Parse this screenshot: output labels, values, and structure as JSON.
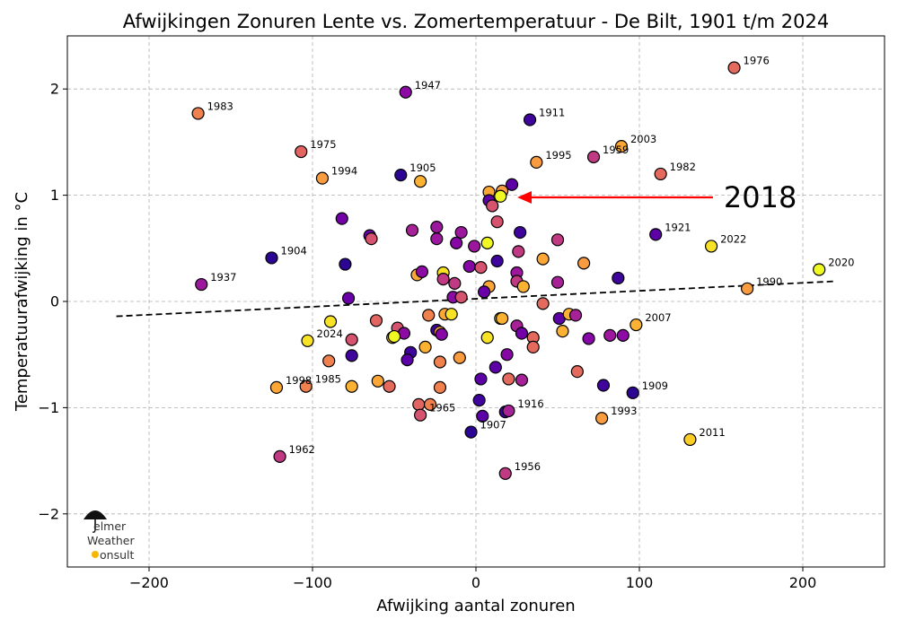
{
  "chart_data": {
    "type": "scatter",
    "title": "Afwijkingen Zonuren Lente vs. Zomertemperatuur - De Bilt, 1901 t/m 2024",
    "xlabel": "Afwijking aantal zonuren",
    "ylabel": "Temperatuurafwijking in °C",
    "xlim": [
      -250,
      250
    ],
    "ylim": [
      -2.5,
      2.5
    ],
    "xticks": [
      -200,
      -100,
      0,
      100,
      200
    ],
    "yticks": [
      -2,
      -1,
      0,
      1,
      2
    ],
    "xtick_labels": [
      "−200",
      "−100",
      "0",
      "100",
      "200"
    ],
    "ytick_labels": [
      "−2",
      "−1",
      "0",
      "1",
      "2"
    ],
    "grid": true,
    "colormap": "plasma (by year)",
    "trendline": {
      "x": [
        -220,
        220
      ],
      "y": [
        -0.14,
        0.19
      ],
      "color": "#000000",
      "style": "dashed"
    },
    "highlight": {
      "label": "2018",
      "x": 22,
      "y": 0.98,
      "arrow_from": [
        145,
        0.98
      ],
      "arrow_color": "#ff0000"
    },
    "points": [
      {
        "x": -170,
        "y": 1.77,
        "c": "#f0804d",
        "label": "1983"
      },
      {
        "x": -43,
        "y": 1.97,
        "c": "#8c0ba5",
        "label": "1947"
      },
      {
        "x": 158,
        "y": 2.2,
        "c": "#e56a5e",
        "label": "1976"
      },
      {
        "x": 33,
        "y": 1.71,
        "c": "#3e049c",
        "label": "1911"
      },
      {
        "x": -107,
        "y": 1.41,
        "c": "#e26561",
        "label": "1975"
      },
      {
        "x": 89,
        "y": 1.46,
        "c": "#fca636",
        "label": "2003"
      },
      {
        "x": 72,
        "y": 1.36,
        "c": "#c03a83",
        "label": "1959"
      },
      {
        "x": 37,
        "y": 1.31,
        "c": "#f99b3f",
        "label": "1995"
      },
      {
        "x": 113,
        "y": 1.2,
        "c": "#e56a5e",
        "label": "1982"
      },
      {
        "x": -94,
        "y": 1.16,
        "c": "#f99b3f",
        "label": "1994"
      },
      {
        "x": -46,
        "y": 1.19,
        "c": "#2d0595",
        "label": "1905"
      },
      {
        "x": -34,
        "y": 1.13,
        "c": "#fbb131",
        "label": ""
      },
      {
        "x": 8,
        "y": 1.03,
        "c": "#fca636",
        "label": ""
      },
      {
        "x": 16,
        "y": 1.04,
        "c": "#f99b3f",
        "label": ""
      },
      {
        "x": 22,
        "y": 1.1,
        "c": "#5c01a6",
        "label": ""
      },
      {
        "x": 8,
        "y": 0.95,
        "c": "#5c01a6",
        "label": ""
      },
      {
        "x": 10,
        "y": 0.9,
        "c": "#d5536f",
        "label": ""
      },
      {
        "x": 15,
        "y": 0.99,
        "c": "#f0f921",
        "label": "2018"
      },
      {
        "x": 13,
        "y": 0.75,
        "c": "#d5536f",
        "label": ""
      },
      {
        "x": -82,
        "y": 0.78,
        "c": "#7201a8",
        "label": ""
      },
      {
        "x": -24,
        "y": 0.7,
        "c": "#9c179e",
        "label": ""
      },
      {
        "x": -39,
        "y": 0.67,
        "c": "#a72197",
        "label": ""
      },
      {
        "x": -65,
        "y": 0.62,
        "c": "#6a00a8",
        "label": ""
      },
      {
        "x": -64,
        "y": 0.59,
        "c": "#d5536f",
        "label": ""
      },
      {
        "x": -24,
        "y": 0.59,
        "c": "#9c179e",
        "label": ""
      },
      {
        "x": -9,
        "y": 0.65,
        "c": "#9c179e",
        "label": ""
      },
      {
        "x": -12,
        "y": 0.55,
        "c": "#8606a6",
        "label": ""
      },
      {
        "x": -1,
        "y": 0.52,
        "c": "#9c179e",
        "label": ""
      },
      {
        "x": 7,
        "y": 0.55,
        "c": "#f0f921",
        "label": ""
      },
      {
        "x": 27,
        "y": 0.65,
        "c": "#3e049c",
        "label": ""
      },
      {
        "x": 26,
        "y": 0.47,
        "c": "#c03a83",
        "label": ""
      },
      {
        "x": 50,
        "y": 0.58,
        "c": "#c03a83",
        "label": ""
      },
      {
        "x": 110,
        "y": 0.63,
        "c": "#5c01a6",
        "label": "1921"
      },
      {
        "x": 144,
        "y": 0.52,
        "c": "#f7e225",
        "label": "2022"
      },
      {
        "x": -125,
        "y": 0.41,
        "c": "#2d0595",
        "label": "1904"
      },
      {
        "x": -80,
        "y": 0.35,
        "c": "#2d0595",
        "label": ""
      },
      {
        "x": -36,
        "y": 0.25,
        "c": "#fca636",
        "label": ""
      },
      {
        "x": -33,
        "y": 0.28,
        "c": "#8c0ba5",
        "label": ""
      },
      {
        "x": -20,
        "y": 0.27,
        "c": "#f7e225",
        "label": ""
      },
      {
        "x": -20,
        "y": 0.21,
        "c": "#c03a83",
        "label": ""
      },
      {
        "x": -4,
        "y": 0.33,
        "c": "#8606a6",
        "label": ""
      },
      {
        "x": 3,
        "y": 0.32,
        "c": "#d5536f",
        "label": ""
      },
      {
        "x": 13,
        "y": 0.38,
        "c": "#3e049c",
        "label": ""
      },
      {
        "x": 25,
        "y": 0.27,
        "c": "#9c179e",
        "label": ""
      },
      {
        "x": 25,
        "y": 0.19,
        "c": "#c03a83",
        "label": ""
      },
      {
        "x": 41,
        "y": 0.4,
        "c": "#fca636",
        "label": ""
      },
      {
        "x": 66,
        "y": 0.36,
        "c": "#f99b3f",
        "label": ""
      },
      {
        "x": 87,
        "y": 0.22,
        "c": "#3e049c",
        "label": ""
      },
      {
        "x": 210,
        "y": 0.3,
        "c": "#f0f921",
        "label": "2020"
      },
      {
        "x": -168,
        "y": 0.16,
        "c": "#9c179e",
        "label": "1937"
      },
      {
        "x": -13,
        "y": 0.17,
        "c": "#c03a83",
        "label": ""
      },
      {
        "x": -14,
        "y": 0.04,
        "c": "#8c0ba5",
        "label": ""
      },
      {
        "x": -9,
        "y": 0.04,
        "c": "#d5536f",
        "label": ""
      },
      {
        "x": 8,
        "y": 0.14,
        "c": "#fca636",
        "label": ""
      },
      {
        "x": 5,
        "y": 0.09,
        "c": "#6a00a8",
        "label": ""
      },
      {
        "x": 29,
        "y": 0.14,
        "c": "#fbb131",
        "label": ""
      },
      {
        "x": 50,
        "y": 0.18,
        "c": "#a72197",
        "label": ""
      },
      {
        "x": 166,
        "y": 0.12,
        "c": "#f99b3f",
        "label": "1990"
      },
      {
        "x": -78,
        "y": 0.03,
        "c": "#6a00a8",
        "label": ""
      },
      {
        "x": 41,
        "y": -0.02,
        "c": "#e56a5e",
        "label": ""
      },
      {
        "x": -61,
        "y": -0.18,
        "c": "#e26561",
        "label": ""
      },
      {
        "x": -89,
        "y": -0.19,
        "c": "#f7e225",
        "label": ""
      },
      {
        "x": -29,
        "y": -0.13,
        "c": "#f0804d",
        "label": ""
      },
      {
        "x": -19,
        "y": -0.12,
        "c": "#fca636",
        "label": ""
      },
      {
        "x": -15,
        "y": -0.12,
        "c": "#f7e225",
        "label": ""
      },
      {
        "x": 15,
        "y": -0.16,
        "c": "#f7e225",
        "label": ""
      },
      {
        "x": 16,
        "y": -0.16,
        "c": "#fbb131",
        "label": ""
      },
      {
        "x": 51,
        "y": -0.16,
        "c": "#5c01a6",
        "label": ""
      },
      {
        "x": 57,
        "y": -0.12,
        "c": "#fbb131",
        "label": ""
      },
      {
        "x": 61,
        "y": -0.13,
        "c": "#a72197",
        "label": ""
      },
      {
        "x": 98,
        "y": -0.22,
        "c": "#fbb131",
        "label": "2007"
      },
      {
        "x": -103,
        "y": -0.37,
        "c": "#f7e225",
        "label": "2024"
      },
      {
        "x": -76,
        "y": -0.36,
        "c": "#d5536f",
        "label": ""
      },
      {
        "x": -48,
        "y": -0.25,
        "c": "#d5536f",
        "label": ""
      },
      {
        "x": -44,
        "y": -0.3,
        "c": "#8c0ba5",
        "label": ""
      },
      {
        "x": -51,
        "y": -0.34,
        "c": "#fbb131",
        "label": ""
      },
      {
        "x": -50,
        "y": -0.33,
        "c": "#f0f921",
        "label": ""
      },
      {
        "x": -24,
        "y": -0.27,
        "c": "#3e049c",
        "label": ""
      },
      {
        "x": -22,
        "y": -0.29,
        "c": "#fca636",
        "label": ""
      },
      {
        "x": -21,
        "y": -0.31,
        "c": "#8606a6",
        "label": ""
      },
      {
        "x": 7,
        "y": -0.34,
        "c": "#f7e225",
        "label": ""
      },
      {
        "x": 25,
        "y": -0.23,
        "c": "#a72197",
        "label": ""
      },
      {
        "x": 28,
        "y": -0.3,
        "c": "#7201a8",
        "label": ""
      },
      {
        "x": 35,
        "y": -0.34,
        "c": "#e56a5e",
        "label": ""
      },
      {
        "x": 35,
        "y": -0.43,
        "c": "#e56a5e",
        "label": ""
      },
      {
        "x": 53,
        "y": -0.28,
        "c": "#fbb131",
        "label": ""
      },
      {
        "x": 69,
        "y": -0.35,
        "c": "#8606a6",
        "label": ""
      },
      {
        "x": 82,
        "y": -0.32,
        "c": "#9c179e",
        "label": ""
      },
      {
        "x": 90,
        "y": -0.32,
        "c": "#8c0ba5",
        "label": ""
      },
      {
        "x": -76,
        "y": -0.51,
        "c": "#3e049c",
        "label": ""
      },
      {
        "x": -40,
        "y": -0.48,
        "c": "#3e049c",
        "label": ""
      },
      {
        "x": -31,
        "y": -0.43,
        "c": "#fbb131",
        "label": ""
      },
      {
        "x": -42,
        "y": -0.55,
        "c": "#5c01a6",
        "label": ""
      },
      {
        "x": -22,
        "y": -0.57,
        "c": "#f0804d",
        "label": ""
      },
      {
        "x": -10,
        "y": -0.53,
        "c": "#f99b3f",
        "label": ""
      },
      {
        "x": -90,
        "y": -0.56,
        "c": "#f0804d",
        "label": ""
      },
      {
        "x": 12,
        "y": -0.62,
        "c": "#5c01a6",
        "label": ""
      },
      {
        "x": 19,
        "y": -0.5,
        "c": "#8606a6",
        "label": ""
      },
      {
        "x": 62,
        "y": -0.66,
        "c": "#e56a5e",
        "label": ""
      },
      {
        "x": 3,
        "y": -0.73,
        "c": "#5c01a6",
        "label": ""
      },
      {
        "x": 20,
        "y": -0.73,
        "c": "#e56a5e",
        "label": ""
      },
      {
        "x": 28,
        "y": -0.74,
        "c": "#a72197",
        "label": ""
      },
      {
        "x": 78,
        "y": -0.79,
        "c": "#3e049c",
        "label": ""
      },
      {
        "x": -122,
        "y": -0.81,
        "c": "#fca636",
        "label": "1998"
      },
      {
        "x": -104,
        "y": -0.8,
        "c": "#f0804d",
        "label": "1985"
      },
      {
        "x": -76,
        "y": -0.8,
        "c": "#fbb131",
        "label": ""
      },
      {
        "x": -60,
        "y": -0.75,
        "c": "#fca636",
        "label": ""
      },
      {
        "x": -53,
        "y": -0.8,
        "c": "#e56a5e",
        "label": ""
      },
      {
        "x": -22,
        "y": -0.81,
        "c": "#f0804d",
        "label": ""
      },
      {
        "x": 96,
        "y": -0.86,
        "c": "#2d0595",
        "label": "1909"
      },
      {
        "x": -35,
        "y": -0.97,
        "c": "#e26561",
        "label": ""
      },
      {
        "x": -28,
        "y": -0.97,
        "c": "#f0804d",
        "label": ""
      },
      {
        "x": -34,
        "y": -1.07,
        "c": "#d5536f",
        "label": "1965"
      },
      {
        "x": 2,
        "y": -0.93,
        "c": "#3e049c",
        "label": ""
      },
      {
        "x": 4,
        "y": -1.08,
        "c": "#5c01a6",
        "label": ""
      },
      {
        "x": 18,
        "y": -1.04,
        "c": "#3e049c",
        "label": ""
      },
      {
        "x": 20,
        "y": -1.03,
        "c": "#a72197",
        "label": "1916"
      },
      {
        "x": 77,
        "y": -1.1,
        "c": "#f99b3f",
        "label": "1993"
      },
      {
        "x": -3,
        "y": -1.23,
        "c": "#2d0595",
        "label": "1907"
      },
      {
        "x": 131,
        "y": -1.3,
        "c": "#fcce25",
        "label": "2011"
      },
      {
        "x": -120,
        "y": -1.46,
        "c": "#c03a83",
        "label": "1962"
      },
      {
        "x": 18,
        "y": -1.62,
        "c": "#c03a83",
        "label": "1956"
      }
    ]
  },
  "logo": {
    "lines": [
      "elmer",
      "Weather",
      "onsult"
    ],
    "alt": "Elmer Weather Consult"
  }
}
